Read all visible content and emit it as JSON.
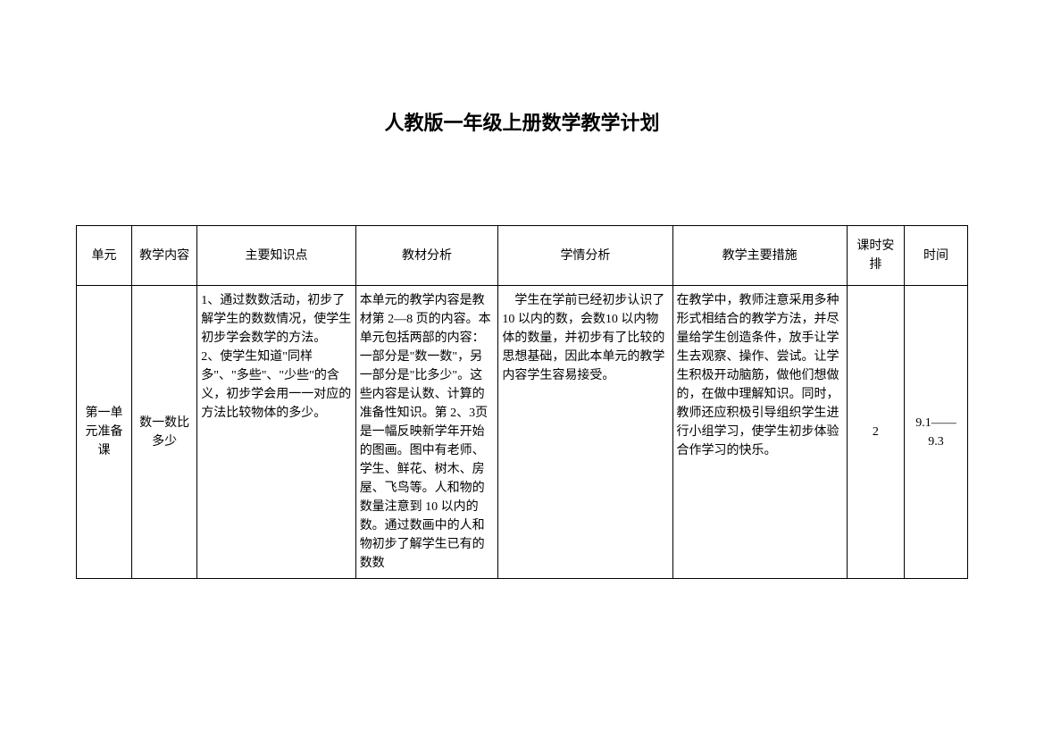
{
  "title": "人教版一年级上册数学教学计划",
  "headers": {
    "unit": "单元",
    "content": "教学内容",
    "knowledge": "主要知识点",
    "material": "教材分析",
    "student": "学情分析",
    "measures": "教学主要措施",
    "hours": "课时安排",
    "time": "时间"
  },
  "row1": {
    "unit": "第一单元准备课",
    "content": "数一数比多少",
    "knowledge": "1、通过数数活动，初步了解学生的数数情况，使学生初步学会数学的方法。\n2、使学生知道\"同样多\"、\"多些\"、\"少些\"的含义，初步学会用一一对应的方法比较物体的多少。",
    "material": "本单元的教学内容是教材第 2—8 页的内容。本单元包括两部的内容：一部分是\"数一数\"，另一部分是\"比多少\"。这些内容是认数、计算的准备性知识。第 2、3页是一幅反映新学年开始的图画。图中有老师、学生、鲜花、树木、房屋、飞鸟等。人和物的数量注意到 10 以内的数。通过数画中的人和物初步了解学生已有的数数",
    "student": "学生在学前已经初步认识了 10 以内的数，会数10 以内物体的数量，并初步有了比较的思想基础，因此本单元的教学内容学生容易接受。",
    "measures": "在教学中，教师注意采用多种形式相结合的教学方法，并尽量给学生创造条件，放手让学生去观察、操作、尝试。让学生积极开动脑筋，做他们想做的，在做中理解知识。同时，教师还应积极引导组织学生进行小组学习，使学生初步体验合作学习的快乐。",
    "hours": "2",
    "time": "9.1——9.3"
  }
}
